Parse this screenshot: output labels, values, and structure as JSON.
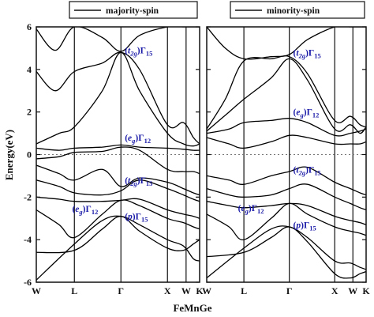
{
  "chart_data": {
    "type": "line",
    "ylabel": "Energy(eV)",
    "xlabel": "FeMnGe",
    "ylim": [
      -6,
      6
    ],
    "yticks": [
      6,
      4,
      2,
      0,
      -2,
      -4,
      -6
    ],
    "fermi_level": 0,
    "kpath": [
      "W",
      "L",
      "Γ",
      "X",
      "W",
      "K"
    ],
    "colors": {
      "bands": "#000000",
      "annotations": "#1a1aa8",
      "fermi": "#777777"
    },
    "panels": [
      {
        "legend": "majority-spin",
        "annotations": [
          {
            "orbital": "t",
            "sub": "2g",
            "rep": "Γ",
            "idx": "15",
            "k": 1.05,
            "e": 4.9
          },
          {
            "orbital": "e",
            "sub": "g",
            "rep": "Γ",
            "idx": "12",
            "k": 1.05,
            "e": 0.8
          },
          {
            "orbital": "t",
            "sub": "2g",
            "rep": "Γ",
            "idx": "15",
            "k": 1.05,
            "e": -1.2
          },
          {
            "orbital": "e",
            "sub": "g",
            "rep": "Γ",
            "idx": "12",
            "k": 0.45,
            "e": -2.55
          },
          {
            "orbital": "p",
            "sub": "",
            "rep": "Γ",
            "idx": "15",
            "k": 1.05,
            "e": -2.9
          }
        ],
        "bands": [
          {
            "k": [
              0,
              0.5,
              0.8,
              1,
              1.4,
              2,
              2.3,
              2.7,
              3
            ],
            "e": [
              -5.9,
              -4.2,
              -3.1,
              -2.9,
              -3.3,
              -4.0,
              -4.3,
              -4.9,
              -5.0
            ]
          },
          {
            "k": [
              0,
              0.5,
              0.8,
              1,
              1.4,
              2,
              2.3,
              2.7,
              3
            ],
            "e": [
              -4.6,
              -4.5,
              -3.5,
              -2.9,
              -3.6,
              -4.4,
              -4.5,
              -4.2,
              -4.0
            ]
          },
          {
            "k": [
              0,
              0.3,
              0.5,
              0.8,
              1,
              1.4,
              2,
              2.3,
              2.7,
              3
            ],
            "e": [
              -2.6,
              -3.3,
              -3.9,
              -2.8,
              -2.15,
              -2.4,
              -3.0,
              -3.2,
              -3.4,
              -3.5
            ]
          },
          {
            "k": [
              0,
              0.3,
              0.5,
              0.8,
              1,
              1.4,
              2,
              2.3,
              2.7,
              3
            ],
            "e": [
              -2.0,
              -2.1,
              -2.2,
              -2.2,
              -2.15,
              -2.1,
              -2.6,
              -2.8,
              -2.9,
              -3.0
            ]
          },
          {
            "k": [
              0,
              0.3,
              0.5,
              0.8,
              1,
              1.4,
              2,
              2.3,
              2.7,
              3
            ],
            "e": [
              -1.2,
              -1.5,
              -1.8,
              -1.9,
              -1.7,
              -1.2,
              -1.6,
              -1.9,
              -2.1,
              -2.2
            ]
          },
          {
            "k": [
              0,
              0.3,
              0.5,
              0.8,
              1,
              1.4,
              2,
              2.3,
              2.7,
              3
            ],
            "e": [
              -0.5,
              -0.9,
              -1.2,
              -0.7,
              -1.5,
              -1.1,
              -1.3,
              -1.6,
              -1.8,
              -1.9
            ]
          },
          {
            "k": [
              0,
              0.3,
              0.5,
              0.8,
              1,
              1.4,
              2,
              2.3,
              2.7,
              3
            ],
            "e": [
              -0.2,
              -0.1,
              0.1,
              0.15,
              0.35,
              0.2,
              -0.7,
              -0.8,
              -0.8,
              -0.9
            ]
          },
          {
            "k": [
              0,
              0.3,
              0.5,
              0.8,
              1,
              1.4,
              2,
              2.3,
              2.7,
              3
            ],
            "e": [
              0.3,
              0.2,
              0.3,
              0.35,
              0.45,
              0.35,
              0.3,
              0.25,
              0.2,
              0.2
            ]
          },
          {
            "k": [
              0,
              0.3,
              0.5,
              0.8,
              1,
              1.4,
              2,
              2.3,
              2.7,
              3
            ],
            "e": [
              0.5,
              1.0,
              1.3,
              3.0,
              4.8,
              3.0,
              1.0,
              0.5,
              0.4,
              0.5
            ]
          },
          {
            "k": [
              0,
              0.25,
              0.5,
              0.8,
              1,
              1.4,
              2,
              2.3,
              2.7,
              3
            ],
            "e": [
              3.9,
              3.0,
              3.9,
              4.3,
              4.8,
              4.0,
              1.4,
              1.5,
              0.8,
              0.5
            ]
          },
          {
            "k": [
              0,
              0.25,
              0.5,
              0.8,
              1,
              1.4,
              2,
              2.3,
              2.7,
              3
            ],
            "e": [
              5.9,
              4.9,
              6.0,
              5.5,
              4.85,
              5.6,
              6.0,
              6.0,
              6.0,
              6.0
            ]
          }
        ]
      },
      {
        "legend": "minority-spin",
        "annotations": [
          {
            "orbital": "t",
            "sub": "2g",
            "rep": "Γ",
            "idx": "15",
            "k": 1.05,
            "e": 4.8
          },
          {
            "orbital": "e",
            "sub": "g",
            "rep": "Γ",
            "idx": "12",
            "k": 1.05,
            "e": 2.0
          },
          {
            "orbital": "t",
            "sub": "2g",
            "rep": "Γ",
            "idx": "15",
            "k": 1.05,
            "e": -0.7
          },
          {
            "orbital": "e",
            "sub": "g",
            "rep": "Γ",
            "idx": "12",
            "k": 0.4,
            "e": -2.5
          },
          {
            "orbital": "p",
            "sub": "",
            "rep": "Γ",
            "idx": "15",
            "k": 1.05,
            "e": -3.3
          }
        ],
        "bands": [
          {
            "k": [
              0,
              0.5,
              0.8,
              1,
              1.4,
              2,
              2.3,
              2.7,
              3
            ],
            "e": [
              -5.8,
              -4.4,
              -3.5,
              -3.4,
              -3.9,
              -5.0,
              -5.1,
              -5.3,
              -5.4
            ]
          },
          {
            "k": [
              0,
              0.5,
              0.8,
              1,
              1.4,
              2,
              2.3,
              2.7,
              3
            ],
            "e": [
              -4.8,
              -4.6,
              -3.9,
              -3.4,
              -4.1,
              -5.6,
              -5.8,
              -5.6,
              -5.5
            ]
          },
          {
            "k": [
              0,
              0.3,
              0.5,
              0.8,
              1,
              1.4,
              2,
              2.3,
              2.7,
              3
            ],
            "e": [
              -2.8,
              -3.4,
              -4.0,
              -3.0,
              -2.3,
              -2.8,
              -3.4,
              -3.6,
              -3.7,
              -3.8
            ]
          },
          {
            "k": [
              0,
              0.3,
              0.5,
              0.8,
              1,
              1.4,
              2,
              2.3,
              2.7,
              3
            ],
            "e": [
              -2.2,
              -2.4,
              -2.5,
              -2.4,
              -2.3,
              -2.4,
              -2.9,
              -3.1,
              -3.2,
              -3.3
            ]
          },
          {
            "k": [
              0,
              0.3,
              0.5,
              0.8,
              1,
              1.4,
              2,
              2.3,
              2.7,
              3
            ],
            "e": [
              -1.6,
              -1.9,
              -2.0,
              -1.9,
              -1.6,
              -1.4,
              -2.0,
              -2.3,
              -2.5,
              -2.6
            ]
          },
          {
            "k": [
              0,
              0.3,
              0.5,
              0.8,
              1,
              1.4,
              2,
              2.3,
              2.7,
              3
            ],
            "e": [
              -1.0,
              -1.2,
              -1.4,
              -1.0,
              -0.8,
              -0.6,
              -1.3,
              -1.6,
              -1.8,
              -1.9
            ]
          },
          {
            "k": [
              0,
              0.3,
              0.5,
              0.8,
              1,
              1.4,
              2,
              2.3,
              2.7,
              3
            ],
            "e": [
              0.8,
              0.5,
              0.3,
              0.6,
              0.9,
              0.8,
              0.5,
              0.5,
              0.5,
              0.6
            ]
          },
          {
            "k": [
              0,
              0.3,
              0.5,
              0.8,
              1,
              1.4,
              2,
              2.3,
              2.7,
              3
            ],
            "e": [
              1.0,
              1.2,
              1.5,
              1.6,
              1.7,
              1.5,
              0.9,
              1.0,
              1.1,
              1.2
            ]
          },
          {
            "k": [
              0,
              0.3,
              0.5,
              0.8,
              1,
              1.4,
              2,
              2.3,
              2.7,
              3
            ],
            "e": [
              1.1,
              2.0,
              2.6,
              3.6,
              4.5,
              3.5,
              1.2,
              1.4,
              1.0,
              1.3
            ]
          },
          {
            "k": [
              0,
              0.25,
              0.5,
              0.8,
              1,
              1.4,
              2,
              2.3,
              2.7,
              3
            ],
            "e": [
              1.2,
              2.6,
              4.4,
              4.5,
              4.6,
              3.8,
              1.6,
              1.8,
              1.4,
              1.3
            ]
          },
          {
            "k": [
              0,
              0.25,
              0.5,
              0.8,
              1,
              1.4,
              2,
              2.3,
              2.7,
              3
            ],
            "e": [
              6.0,
              5.0,
              4.5,
              4.6,
              4.7,
              5.4,
              6.0,
              6.0,
              6.0,
              6.0
            ]
          }
        ]
      }
    ]
  }
}
